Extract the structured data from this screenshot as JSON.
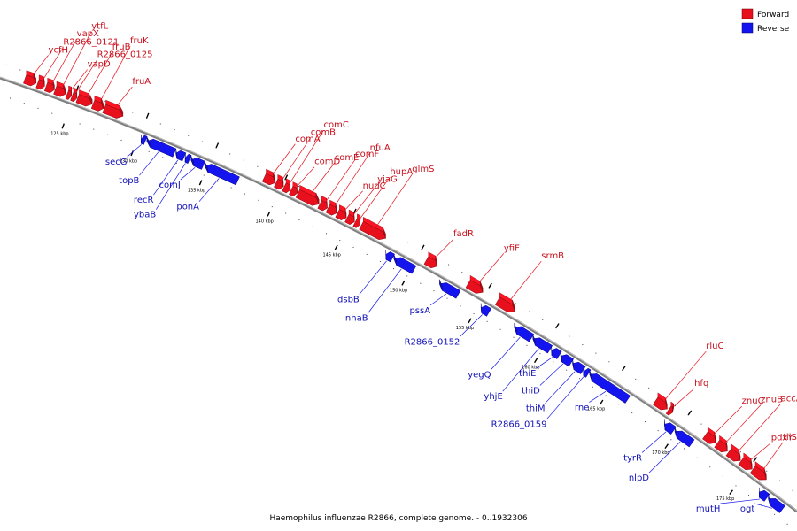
{
  "caption": "Haemophilus influenzae R2866, complete genome. - 0..1932306",
  "colors": {
    "forward": "#e8101c",
    "reverse": "#1414ee",
    "backbone": "#808080"
  },
  "legend": [
    {
      "label": "Forward",
      "color": "#e8101c"
    },
    {
      "label": "Reverse",
      "color": "#1414ee"
    }
  ],
  "ticks": [
    {
      "pos_kbp": 125,
      "label": "125 kbp"
    },
    {
      "pos_kbp": 130,
      "label": "130 kbp"
    },
    {
      "pos_kbp": 135,
      "label": "135 kbp"
    },
    {
      "pos_kbp": 140,
      "label": "140 kbp"
    },
    {
      "pos_kbp": 145,
      "label": "145 kbp"
    },
    {
      "pos_kbp": 150,
      "label": "150 kbp"
    },
    {
      "pos_kbp": 155,
      "label": "155 kbp"
    },
    {
      "pos_kbp": 160,
      "label": "160 kbp"
    },
    {
      "pos_kbp": 165,
      "label": "165 kbp"
    },
    {
      "pos_kbp": 170,
      "label": "170 kbp"
    },
    {
      "pos_kbp": 175,
      "label": "175 kbp"
    }
  ],
  "genes": [
    {
      "name": "ycfH",
      "strand": "+",
      "start_kbp": 121.5,
      "end_kbp": 122.3
    },
    {
      "name": "R2866_0121",
      "strand": "+",
      "start_kbp": 122.4,
      "end_kbp": 122.9
    },
    {
      "name": "vapX",
      "strand": "+",
      "start_kbp": 123.0,
      "end_kbp": 123.6
    },
    {
      "name": "ytfL",
      "strand": "+",
      "start_kbp": 123.65,
      "end_kbp": 124.4
    },
    {
      "name": "vapD",
      "strand": "+",
      "start_kbp": 124.5,
      "end_kbp": 124.8
    },
    {
      "name": "R2866_0125",
      "strand": "+",
      "start_kbp": 124.85,
      "end_kbp": 125.2
    },
    {
      "name": "fruB",
      "strand": "+",
      "start_kbp": 125.25,
      "end_kbp": 126.3
    },
    {
      "name": "fruK",
      "strand": "+",
      "start_kbp": 126.35,
      "end_kbp": 127.1
    },
    {
      "name": "fruA",
      "strand": "+",
      "start_kbp": 127.15,
      "end_kbp": 128.5
    },
    {
      "name": "secG",
      "strand": "-",
      "start_kbp": 130.2,
      "end_kbp": 130.5
    },
    {
      "name": "topB",
      "strand": "-",
      "start_kbp": 130.6,
      "end_kbp": 132.6
    },
    {
      "name": "recR",
      "strand": "-",
      "start_kbp": 132.7,
      "end_kbp": 133.3
    },
    {
      "name": "ybaB",
      "strand": "-",
      "start_kbp": 133.4,
      "end_kbp": 133.7
    },
    {
      "name": "comJ",
      "strand": "-",
      "start_kbp": 133.8,
      "end_kbp": 134.7
    },
    {
      "name": "ponA",
      "strand": "-",
      "start_kbp": 134.8,
      "end_kbp": 137.2
    },
    {
      "name": "comA",
      "strand": "+",
      "start_kbp": 138.7,
      "end_kbp": 139.5
    },
    {
      "name": "comB",
      "strand": "+",
      "start_kbp": 139.55,
      "end_kbp": 140.1
    },
    {
      "name": "comC",
      "strand": "+",
      "start_kbp": 140.15,
      "end_kbp": 140.6
    },
    {
      "name": "comD",
      "strand": "+",
      "start_kbp": 140.65,
      "end_kbp": 141.1
    },
    {
      "name": "comE",
      "strand": "+",
      "start_kbp": 141.15,
      "end_kbp": 142.7
    },
    {
      "name": "comF",
      "strand": "+",
      "start_kbp": 142.75,
      "end_kbp": 143.3
    },
    {
      "name": "nfuA",
      "strand": "+",
      "start_kbp": 143.35,
      "end_kbp": 144.0
    },
    {
      "name": "nudC",
      "strand": "+",
      "start_kbp": 144.05,
      "end_kbp": 144.7
    },
    {
      "name": "yjaG",
      "strand": "+",
      "start_kbp": 144.75,
      "end_kbp": 145.3
    },
    {
      "name": "hupA",
      "strand": "+",
      "start_kbp": 145.35,
      "end_kbp": 145.7
    },
    {
      "name": "glmS",
      "strand": "+",
      "start_kbp": 145.8,
      "end_kbp": 147.6
    },
    {
      "name": "dsbB",
      "strand": "-",
      "start_kbp": 148.1,
      "end_kbp": 148.6
    },
    {
      "name": "nhaB",
      "strand": "-",
      "start_kbp": 148.7,
      "end_kbp": 150.2
    },
    {
      "name": "fadR",
      "strand": "+",
      "start_kbp": 150.6,
      "end_kbp": 151.4
    },
    {
      "name": "pssA",
      "strand": "-",
      "start_kbp": 152.1,
      "end_kbp": 153.5
    },
    {
      "name": "yfiF",
      "strand": "+",
      "start_kbp": 153.7,
      "end_kbp": 154.8
    },
    {
      "name": "R2866_0152",
      "strand": "-",
      "start_kbp": 155.2,
      "end_kbp": 155.8
    },
    {
      "name": "srmB",
      "strand": "+",
      "start_kbp": 155.9,
      "end_kbp": 157.2
    },
    {
      "name": "yegQ",
      "strand": "-",
      "start_kbp": 157.7,
      "end_kbp": 159.0
    },
    {
      "name": "yhjE",
      "strand": "-",
      "start_kbp": 159.1,
      "end_kbp": 160.4
    },
    {
      "name": "thiE",
      "strand": "-",
      "start_kbp": 160.5,
      "end_kbp": 161.1
    },
    {
      "name": "thiD",
      "strand": "-",
      "start_kbp": 161.2,
      "end_kbp": 162.0
    },
    {
      "name": "thiM",
      "strand": "-",
      "start_kbp": 162.1,
      "end_kbp": 162.9
    },
    {
      "name": "R2866_0159",
      "strand": "-",
      "start_kbp": 163.0,
      "end_kbp": 163.3
    },
    {
      "name": "rne",
      "strand": "-",
      "start_kbp": 163.4,
      "end_kbp": 166.3
    },
    {
      "name": "rluC",
      "strand": "+",
      "start_kbp": 167.8,
      "end_kbp": 168.7
    },
    {
      "name": "hfq",
      "strand": "+",
      "start_kbp": 168.8,
      "end_kbp": 169.1
    },
    {
      "name": "tyrR",
      "strand": "-",
      "start_kbp": 169.1,
      "end_kbp": 169.8
    },
    {
      "name": "nlpD",
      "strand": "-",
      "start_kbp": 169.9,
      "end_kbp": 171.2
    },
    {
      "name": "znuC",
      "strand": "+",
      "start_kbp": 171.6,
      "end_kbp": 172.4
    },
    {
      "name": "znuB",
      "strand": "+",
      "start_kbp": 172.5,
      "end_kbp": 173.3
    },
    {
      "name": "accA",
      "strand": "+",
      "start_kbp": 173.4,
      "end_kbp": 174.3
    },
    {
      "name": "pdxY",
      "strand": "+",
      "start_kbp": 174.35,
      "end_kbp": 175.2
    },
    {
      "name": "tilS",
      "strand": "+",
      "start_kbp": 175.25,
      "end_kbp": 176.3
    },
    {
      "name": "mutH",
      "strand": "-",
      "start_kbp": 176.4,
      "end_kbp": 177.0
    },
    {
      "name": "ogt",
      "strand": "-",
      "start_kbp": 177.1,
      "end_kbp": 178.2
    }
  ]
}
